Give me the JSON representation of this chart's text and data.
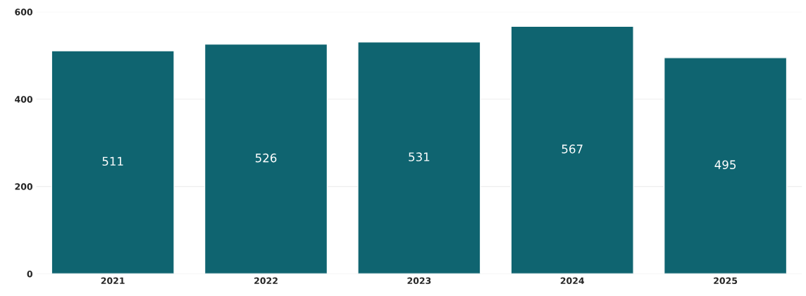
{
  "chart_data": {
    "type": "bar",
    "categories": [
      "2021",
      "2022",
      "2023",
      "2024",
      "2025"
    ],
    "values": [
      511,
      526,
      531,
      567,
      495
    ],
    "color": "#0f6470",
    "ylim": [
      0,
      600
    ],
    "yticks": [
      0,
      200,
      400,
      600
    ],
    "grid": "y",
    "data_labels": true
  }
}
